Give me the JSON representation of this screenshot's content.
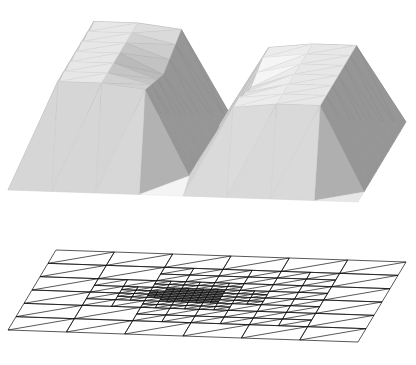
{
  "chart_data": {
    "type": "surface",
    "x": [
      0,
      0.125,
      0.25,
      0.375,
      0.5,
      0.625,
      0.75,
      0.875,
      1
    ],
    "y": [
      0,
      0.125,
      0.25,
      0.375,
      0.5,
      0.625,
      0.75,
      0.875,
      1
    ],
    "z": [
      [
        0,
        0,
        0,
        0,
        0,
        0,
        0,
        0,
        0
      ],
      [
        0,
        1,
        1,
        0.95,
        0.1,
        0.8,
        0.85,
        0.85,
        0
      ],
      [
        0,
        1,
        1,
        0.9,
        0.1,
        0.8,
        0.85,
        0.85,
        0
      ],
      [
        0,
        1,
        1,
        0.85,
        0.05,
        0.75,
        0.85,
        0.85,
        0
      ],
      [
        0,
        1,
        1,
        0.8,
        0.05,
        0.7,
        0.85,
        0.85,
        0
      ],
      [
        0,
        1,
        1,
        0.85,
        0.05,
        0.75,
        0.85,
        0.85,
        0
      ],
      [
        0,
        1,
        1,
        0.9,
        0.1,
        0.8,
        0.85,
        0.85,
        0
      ],
      [
        0,
        1,
        1,
        0.95,
        0.1,
        0.8,
        0.85,
        0.85,
        0
      ],
      [
        0,
        0,
        0,
        0,
        0,
        0,
        0,
        0,
        0
      ]
    ],
    "tick_labels": false
  }
}
